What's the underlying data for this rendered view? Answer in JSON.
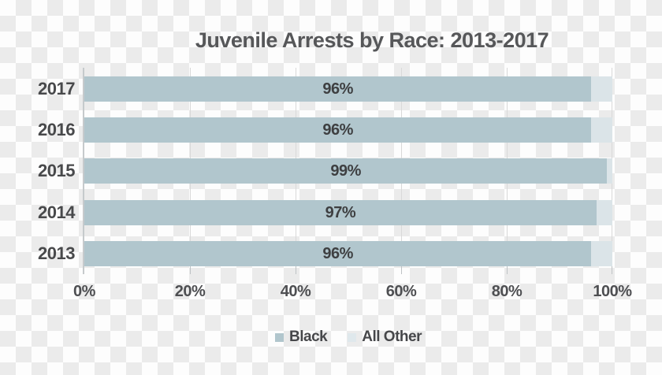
{
  "chart_data": {
    "type": "bar",
    "orientation": "horizontal-stacked",
    "title": "Juvenile Arrests by Race: 2013-2017",
    "categories": [
      "2017",
      "2016",
      "2015",
      "2014",
      "2013"
    ],
    "series": [
      {
        "name": "Black",
        "color": "#b1c6cd",
        "values": [
          96,
          96,
          99,
          97,
          96
        ]
      },
      {
        "name": "All Other",
        "color": "#dbe4e8",
        "values": [
          4,
          4,
          1,
          3,
          4
        ]
      }
    ],
    "bar_labels": [
      "96%",
      "96%",
      "99%",
      "97%",
      "96%"
    ],
    "x_ticks": [
      "0%",
      "20%",
      "40%",
      "60%",
      "80%",
      "100%"
    ],
    "xlim": [
      0,
      100
    ],
    "grid": "vertical-gridlines-at-20pct",
    "legend_position": "bottom-center",
    "background": "transparency-checkerboard"
  },
  "colors": {
    "bar_black": "#b1c6cd",
    "bar_all_other": "#dbe4e8",
    "text_dark": "#48494b",
    "gridline": "#d9d9d9",
    "axis_line": "#c6cacc",
    "checker_white": "#fdfdfd",
    "checker_gray": "#ebebeb"
  }
}
